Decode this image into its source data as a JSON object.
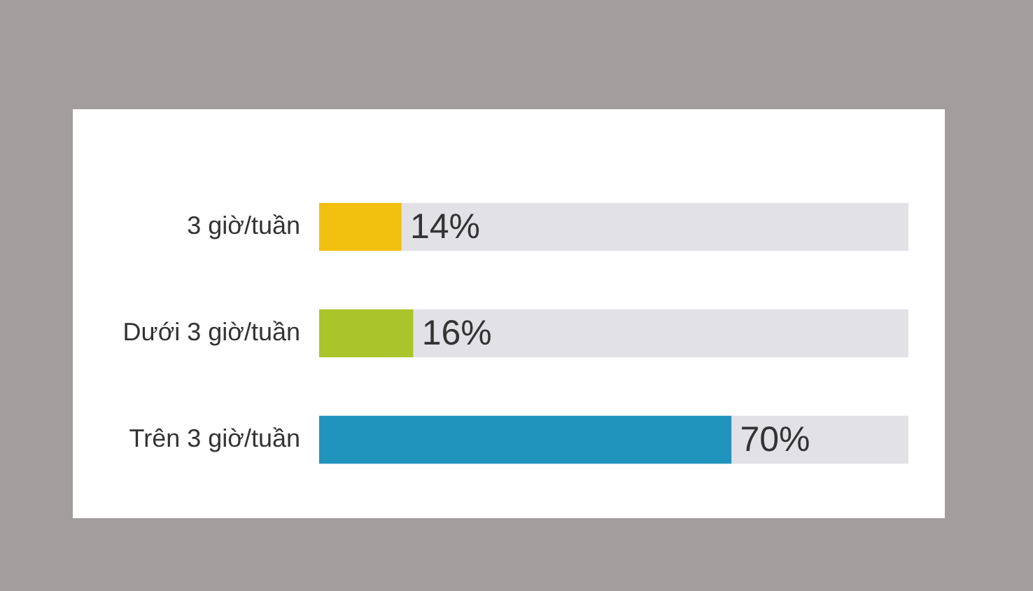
{
  "chart_data": {
    "type": "bar",
    "orientation": "horizontal",
    "stacked": true,
    "legend": false,
    "grid": false,
    "categories": [
      "3 giờ/tuần",
      "Dưới 3 giờ/tuần",
      "Trên 3 giờ/tuần"
    ],
    "series": [
      {
        "colors": [
          "#f1bf0e",
          "#a9c52b",
          "#2194bd"
        ],
        "values": [
          14,
          16,
          70
        ],
        "value_labels": [
          "14%",
          "16%",
          "70%"
        ]
      },
      {
        "color": "#e2e2e6",
        "values": [
          86,
          84,
          30
        ]
      }
    ]
  }
}
